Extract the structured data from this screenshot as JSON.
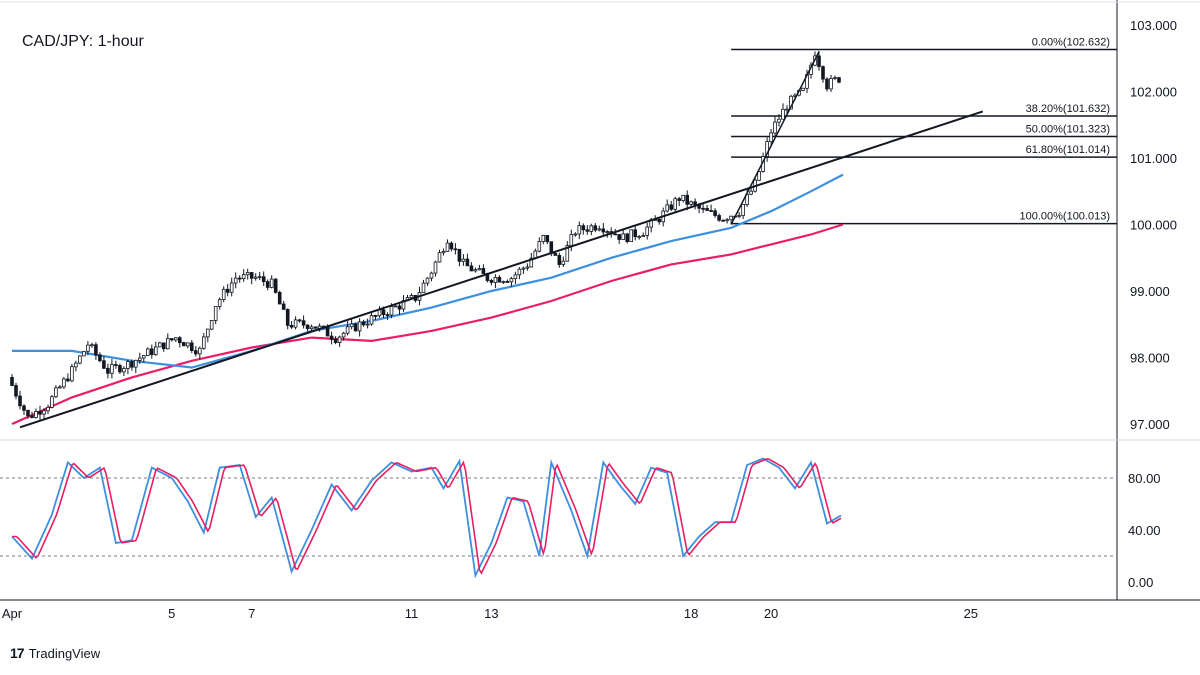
{
  "brand": {
    "logo_text": "17",
    "name": "TradingView"
  },
  "chart_data": {
    "type": "candlestick",
    "title": "CAD/JPY: 1-hour",
    "price_axis": {
      "ticks": [
        "103.000",
        "102.000",
        "101.000",
        "100.000",
        "99.000",
        "98.000",
        "97.000"
      ],
      "ylim": [
        96.9,
        103.2
      ]
    },
    "oscillator_axis": {
      "ticks": [
        "80.00",
        "40.00",
        "0.00"
      ],
      "ylim": [
        0,
        100
      ],
      "dashed_levels": [
        80,
        20
      ]
    },
    "x_ticks": [
      {
        "label": "Apr",
        "day": 1
      },
      {
        "label": "5",
        "day": 5
      },
      {
        "label": "7",
        "day": 7
      },
      {
        "label": "11",
        "day": 11
      },
      {
        "label": "13",
        "day": 13
      },
      {
        "label": "18",
        "day": 18
      },
      {
        "label": "20",
        "day": 20
      },
      {
        "label": "25",
        "day": 25
      }
    ],
    "fibonacci_levels": [
      {
        "label": "0.00%(102.632)",
        "price": 102.632
      },
      {
        "label": "38.20%(101.632)",
        "price": 101.632
      },
      {
        "label": "50.00%(101.323)",
        "price": 101.323
      },
      {
        "label": "61.80%(101.014)",
        "price": 101.014
      },
      {
        "label": "100.00%(100.013)",
        "price": 100.013
      }
    ],
    "price_path": [
      [
        0.0,
        97.7
      ],
      [
        0.5,
        97.1
      ],
      [
        1.0,
        97.3
      ],
      [
        1.6,
        97.8
      ],
      [
        2.0,
        98.2
      ],
      [
        2.5,
        97.8
      ],
      [
        3.0,
        97.9
      ],
      [
        3.6,
        98.1
      ],
      [
        4.2,
        98.3
      ],
      [
        4.8,
        98.1
      ],
      [
        5.2,
        98.8
      ],
      [
        5.7,
        99.2
      ],
      [
        6.2,
        99.2
      ],
      [
        6.6,
        99.1
      ],
      [
        7.0,
        98.5
      ],
      [
        7.6,
        98.5
      ],
      [
        8.2,
        98.3
      ],
      [
        8.8,
        98.5
      ],
      [
        9.5,
        98.7
      ],
      [
        10.2,
        98.9
      ],
      [
        10.6,
        99.3
      ],
      [
        11.0,
        99.8
      ],
      [
        11.4,
        99.4
      ],
      [
        12.0,
        99.2
      ],
      [
        12.6,
        99.2
      ],
      [
        13.0,
        99.4
      ],
      [
        13.4,
        99.8
      ],
      [
        13.8,
        99.4
      ],
      [
        14.2,
        99.9
      ],
      [
        14.8,
        100.0
      ],
      [
        15.4,
        99.8
      ],
      [
        15.9,
        99.9
      ],
      [
        16.3,
        100.1
      ],
      [
        16.8,
        100.4
      ],
      [
        17.4,
        100.2
      ],
      [
        17.9,
        100.1
      ],
      [
        18.3,
        100.2
      ],
      [
        18.7,
        100.6
      ],
      [
        19.1,
        101.4
      ],
      [
        19.5,
        101.8
      ],
      [
        19.9,
        102.0
      ],
      [
        20.2,
        102.6
      ],
      [
        20.5,
        102.1
      ],
      [
        20.8,
        102.2
      ]
    ],
    "trendline": {
      "from": [
        0.2,
        96.95
      ],
      "to": [
        24.3,
        101.7
      ]
    },
    "fib_swing": {
      "from": [
        18.0,
        100.0
      ],
      "to": [
        20.2,
        102.6
      ]
    },
    "ma_fast": [
      [
        0.0,
        98.1
      ],
      [
        1.5,
        98.1
      ],
      [
        3.0,
        97.95
      ],
      [
        4.5,
        97.85
      ],
      [
        6.0,
        98.1
      ],
      [
        7.5,
        98.4
      ],
      [
        9.0,
        98.55
      ],
      [
        10.5,
        98.75
      ],
      [
        12.0,
        99.0
      ],
      [
        13.5,
        99.2
      ],
      [
        15.0,
        99.5
      ],
      [
        16.5,
        99.75
      ],
      [
        18.0,
        99.95
      ],
      [
        19.0,
        100.2
      ],
      [
        20.0,
        100.5
      ],
      [
        20.8,
        100.75
      ]
    ],
    "ma_slow": [
      [
        0.0,
        97.0
      ],
      [
        1.5,
        97.4
      ],
      [
        3.0,
        97.7
      ],
      [
        4.5,
        97.95
      ],
      [
        6.0,
        98.15
      ],
      [
        7.5,
        98.3
      ],
      [
        9.0,
        98.25
      ],
      [
        10.5,
        98.4
      ],
      [
        12.0,
        98.6
      ],
      [
        13.5,
        98.85
      ],
      [
        15.0,
        99.15
      ],
      [
        16.5,
        99.4
      ],
      [
        18.0,
        99.55
      ],
      [
        19.0,
        99.7
      ],
      [
        20.0,
        99.85
      ],
      [
        20.8,
        100.0
      ]
    ],
    "stoch_k": [
      [
        0.0,
        35
      ],
      [
        0.5,
        18
      ],
      [
        1.0,
        52
      ],
      [
        1.4,
        92
      ],
      [
        1.8,
        80
      ],
      [
        2.2,
        88
      ],
      [
        2.6,
        30
      ],
      [
        3.0,
        32
      ],
      [
        3.5,
        88
      ],
      [
        4.0,
        80
      ],
      [
        4.4,
        62
      ],
      [
        4.8,
        38
      ],
      [
        5.2,
        88
      ],
      [
        5.7,
        90
      ],
      [
        6.1,
        50
      ],
      [
        6.5,
        65
      ],
      [
        7.0,
        8
      ],
      [
        7.5,
        40
      ],
      [
        8.0,
        75
      ],
      [
        8.5,
        55
      ],
      [
        9.0,
        78
      ],
      [
        9.5,
        92
      ],
      [
        10.0,
        85
      ],
      [
        10.5,
        88
      ],
      [
        10.8,
        72
      ],
      [
        11.2,
        93
      ],
      [
        11.6,
        5
      ],
      [
        12.0,
        30
      ],
      [
        12.4,
        65
      ],
      [
        12.8,
        62
      ],
      [
        13.2,
        20
      ],
      [
        13.5,
        92
      ],
      [
        14.0,
        55
      ],
      [
        14.4,
        20
      ],
      [
        14.8,
        92
      ],
      [
        15.2,
        75
      ],
      [
        15.6,
        60
      ],
      [
        16.0,
        88
      ],
      [
        16.4,
        84
      ],
      [
        16.8,
        20
      ],
      [
        17.2,
        35
      ],
      [
        17.6,
        46
      ],
      [
        18.0,
        46
      ],
      [
        18.4,
        90
      ],
      [
        18.8,
        95
      ],
      [
        19.2,
        88
      ],
      [
        19.6,
        72
      ],
      [
        20.0,
        92
      ],
      [
        20.4,
        45
      ],
      [
        20.8,
        52
      ]
    ]
  }
}
